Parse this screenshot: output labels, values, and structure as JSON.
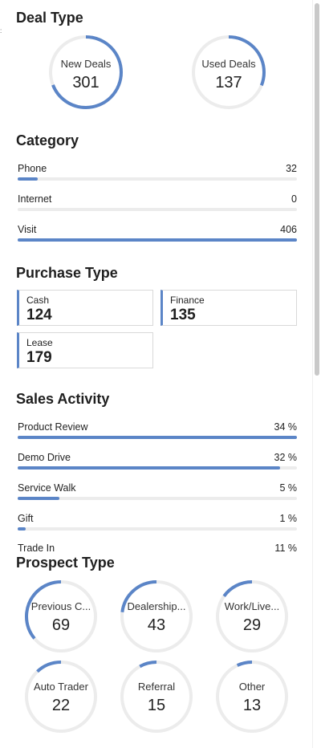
{
  "deal_type": {
    "title": "Deal Type",
    "gauges": [
      {
        "label": "New Deals",
        "value": "301",
        "fraction": 0.69
      },
      {
        "label": "Used Deals",
        "value": "137",
        "fraction": 0.31
      }
    ]
  },
  "category": {
    "title": "Category",
    "rows": [
      {
        "label": "Phone",
        "value": "32",
        "fraction": 0.073
      },
      {
        "label": "Internet",
        "value": "0",
        "fraction": 0.0
      },
      {
        "label": "Visit",
        "value": "406",
        "fraction": 1.0
      }
    ]
  },
  "purchase_type": {
    "title": "Purchase Type",
    "cards": [
      {
        "label": "Cash",
        "value": "124"
      },
      {
        "label": "Finance",
        "value": "135"
      },
      {
        "label": "Lease",
        "value": "179"
      }
    ]
  },
  "sales_activity": {
    "title": "Sales Activity",
    "rows": [
      {
        "label": "Product Review",
        "value": "34 %",
        "fraction": 1.0
      },
      {
        "label": "Demo Drive",
        "value": "32 %",
        "fraction": 0.94
      },
      {
        "label": "Service Walk",
        "value": "5 %",
        "fraction": 0.15
      },
      {
        "label": "Gift",
        "value": "1 %",
        "fraction": 0.03
      },
      {
        "label": "Trade In",
        "value": "11 %",
        "fraction": 0.32
      }
    ]
  },
  "prospect_type": {
    "title": "Prospect Type",
    "gauges": [
      {
        "label": "Previous C...",
        "value": "69",
        "fraction": 0.36
      },
      {
        "label": "Dealership...",
        "value": "43",
        "fraction": 0.23
      },
      {
        "label": "Work/Live...",
        "value": "29",
        "fraction": 0.15
      },
      {
        "label": "Auto Trader",
        "value": "22",
        "fraction": 0.12
      },
      {
        "label": "Referral",
        "value": "15",
        "fraction": 0.08
      },
      {
        "label": "Other",
        "value": "13",
        "fraction": 0.07
      }
    ]
  },
  "colors": {
    "accent": "#5b85c7",
    "track": "#ececec"
  }
}
